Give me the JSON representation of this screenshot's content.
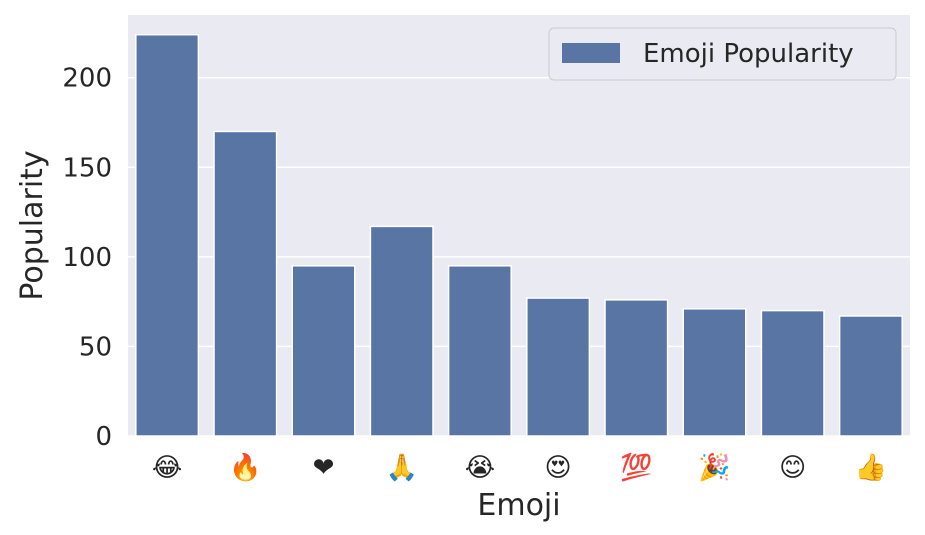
{
  "chart_data": {
    "type": "bar",
    "categories": [
      "😂",
      "🔥",
      "❤",
      "🙏",
      "😭",
      "😍",
      "💯",
      "🎉",
      "😊",
      "👍"
    ],
    "series": [
      {
        "name": "Emoji Popularity",
        "values": [
          224,
          170,
          95,
          117,
          95,
          77,
          76,
          71,
          70,
          67
        ]
      }
    ],
    "xlabel": "Emoji",
    "ylabel": "Popularity",
    "ylim": [
      0,
      235
    ],
    "yticks": [
      0,
      50,
      100,
      150,
      200
    ],
    "grid": true,
    "legend": "top-right",
    "colors": {
      "bar": "#5875a4",
      "plot_background": "#eaeaf2",
      "grid": "#ffffff",
      "text": "#262626"
    }
  }
}
